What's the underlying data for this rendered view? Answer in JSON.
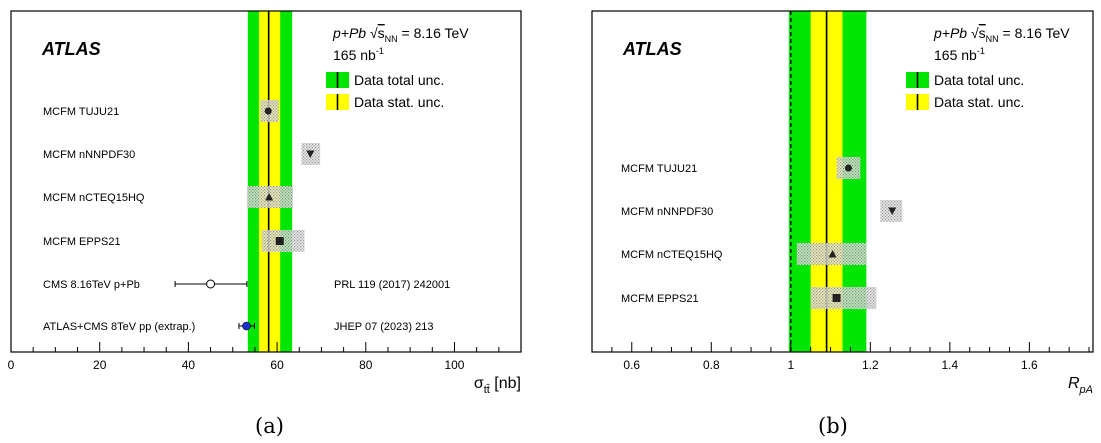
{
  "chart_data": [
    {
      "type": "scatter",
      "panel_label": "(a)",
      "experiment_label": "ATLAS",
      "header": {
        "system": "p+Pb",
        "sqrt_symbol": "√",
        "s_sub": "NN",
        "energy": "= 8.16 TeV",
        "lumi": "165 nb",
        "lumi_exp": "-1"
      },
      "xlabel": "σ",
      "xlabel_sub": "tt̄",
      "xlabel_unit": "[nb]",
      "xlim": [
        0,
        115
      ],
      "xticks": [
        0,
        20,
        40,
        60,
        80,
        100
      ],
      "data_band": {
        "central": 58.1,
        "stat": [
          55.9,
          60.7
        ],
        "total": [
          53.4,
          63.4
        ]
      },
      "legend": [
        {
          "label": "Data total unc.",
          "color": "#00e600"
        },
        {
          "label": "Data stat. unc.",
          "color": "#ffff00"
        }
      ],
      "rows": [
        {
          "label": "MCFM TUJU21",
          "value": 58.0,
          "box": [
            56.2,
            60.4
          ],
          "marker": "circle"
        },
        {
          "label": "MCFM nNNPDF30",
          "value": 67.5,
          "box": [
            65.5,
            69.7
          ],
          "marker": "triangle-down"
        },
        {
          "label": "MCFM nCTEQ15HQ",
          "value": 58.2,
          "box": [
            53.2,
            63.6
          ],
          "marker": "triangle-up"
        },
        {
          "label": "MCFM EPPS21",
          "value": 60.6,
          "box": [
            56.5,
            66.2
          ],
          "marker": "square"
        },
        {
          "label": "CMS 8.16TeV p+Pb",
          "value": 45.0,
          "err": [
            37.0,
            53.2
          ],
          "marker": "open-circle",
          "ref": "PRL 119 (2017) 242001"
        },
        {
          "label": "ATLAS+CMS 8TeV pp (extrap.)",
          "value": 53.1,
          "err": [
            51.4,
            54.9
          ],
          "marker": "blue-circle",
          "ref": "JHEP 07 (2023) 213"
        }
      ]
    },
    {
      "type": "scatter",
      "panel_label": "(b)",
      "experiment_label": "ATLAS",
      "header": {
        "system": "p+Pb",
        "sqrt_symbol": "√",
        "s_sub": "NN",
        "energy": "= 8.16 TeV",
        "lumi": "165 nb",
        "lumi_exp": "-1"
      },
      "xlabel": "R",
      "xlabel_sub": "pA",
      "xlim": [
        0.5,
        1.76
      ],
      "xticks": [
        0.6,
        0.8,
        1,
        1.2,
        1.4,
        1.6
      ],
      "tick_labels": [
        "0.6",
        "0.8",
        "1",
        "1.2",
        "1.4",
        "1.6"
      ],
      "reference_line": 1.0,
      "data_band": {
        "central": 1.09,
        "stat": [
          1.05,
          1.13
        ],
        "total": [
          0.995,
          1.19
        ]
      },
      "legend": [
        {
          "label": "Data total unc.",
          "color": "#00e600"
        },
        {
          "label": "Data stat. unc.",
          "color": "#ffff00"
        }
      ],
      "rows": [
        {
          "label": "MCFM TUJU21",
          "value": 1.145,
          "box": [
            1.115,
            1.175
          ],
          "marker": "circle"
        },
        {
          "label": "MCFM nNNPDF30",
          "value": 1.255,
          "box": [
            1.225,
            1.28
          ],
          "marker": "triangle-down"
        },
        {
          "label": "MCFM nCTEQ15HQ",
          "value": 1.105,
          "box": [
            1.015,
            1.19
          ],
          "marker": "triangle-up"
        },
        {
          "label": "MCFM EPPS21",
          "value": 1.115,
          "box": [
            1.05,
            1.215
          ],
          "marker": "square"
        }
      ]
    }
  ]
}
